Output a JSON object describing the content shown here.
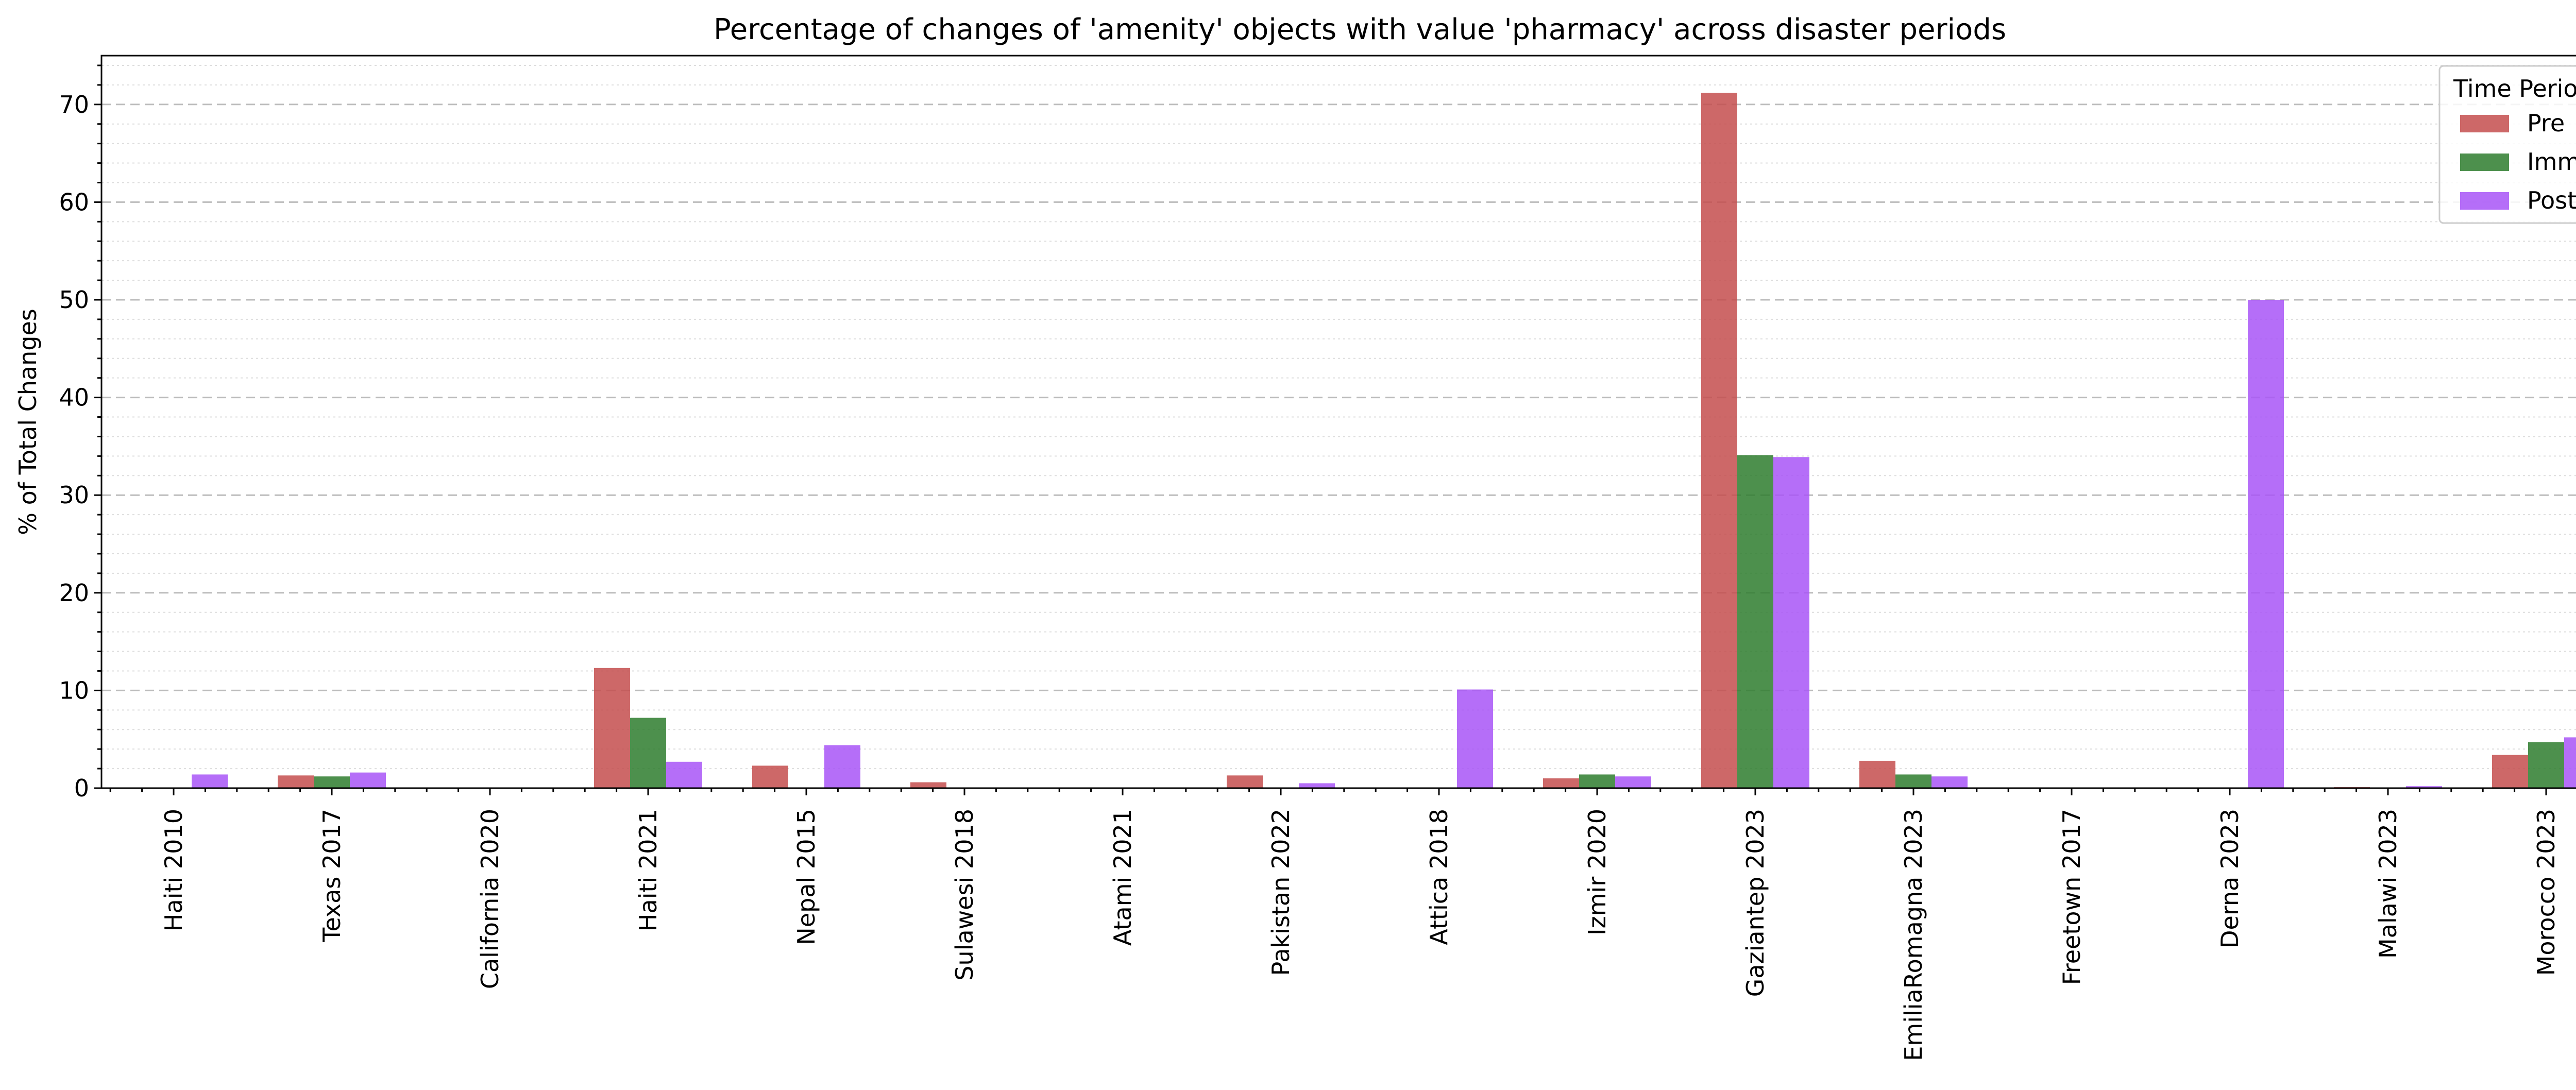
{
  "chart_data": {
    "type": "bar",
    "title": "Percentage of changes of 'amenity' objects with value 'pharmacy' across disaster periods",
    "xlabel": "",
    "ylabel": "% of Total Changes",
    "ylim": [
      0,
      75
    ],
    "yticks": [
      0,
      10,
      20,
      30,
      40,
      50,
      60,
      70
    ],
    "grid": true,
    "legend": {
      "title": "Time Period",
      "position": "top-right"
    },
    "categories": [
      "Haiti 2010",
      "Texas 2017",
      "California 2020",
      "Haiti 2021",
      "Nepal 2015",
      "Sulawesi 2018",
      "Atami 2021",
      "Pakistan 2022",
      "Attica 2018",
      "Izmir 2020",
      "Gaziantep 2023",
      "EmiliaRomagna 2023",
      "Freetown 2017",
      "Derna 2023",
      "Malawi 2023",
      "Morocco 2023"
    ],
    "series": [
      {
        "name": "Pre",
        "color": "#c44e4e",
        "values": [
          0,
          1.3,
          0,
          12.3,
          2.3,
          0.6,
          0,
          1.3,
          0,
          1.0,
          71.2,
          2.8,
          0,
          0,
          0.1,
          3.4
        ]
      },
      {
        "name": "Imm",
        "color": "#2e7d2e",
        "values": [
          0,
          1.2,
          0,
          7.2,
          0,
          0,
          0,
          0,
          0,
          1.4,
          34.1,
          1.4,
          0,
          0,
          0,
          4.7
        ]
      },
      {
        "name": "Post",
        "color": "#a855f7",
        "values": [
          1.4,
          1.6,
          0,
          2.7,
          4.4,
          0,
          0,
          0.5,
          10.1,
          1.2,
          33.9,
          1.2,
          0,
          50.0,
          0.2,
          5.2
        ]
      }
    ]
  }
}
